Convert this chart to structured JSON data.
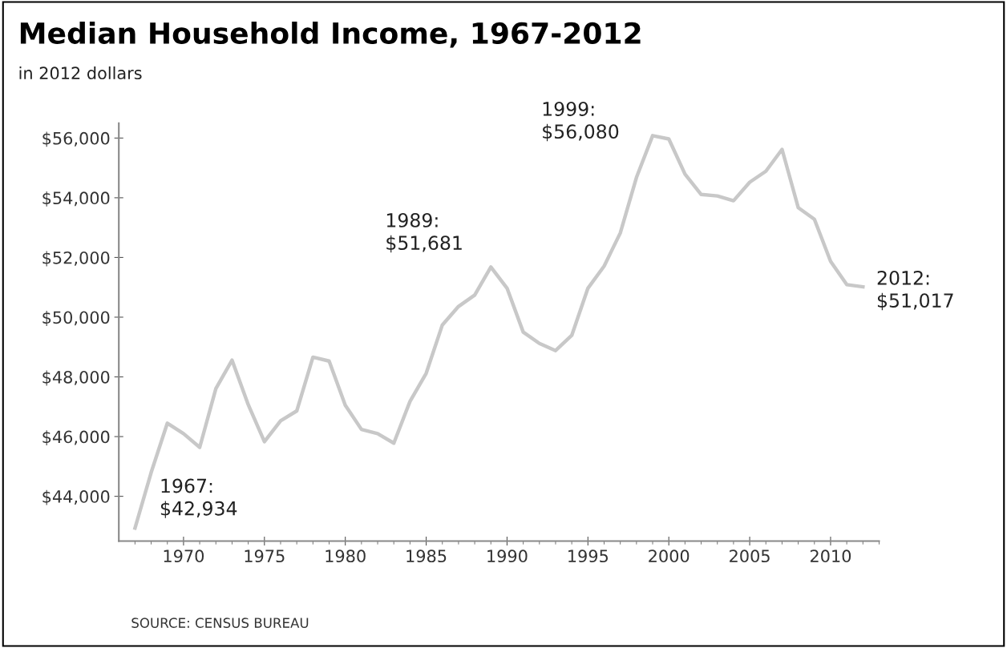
{
  "chart_data": {
    "type": "line",
    "title": "Median Household Income, 1967-2012",
    "subtitle": "in 2012 dollars",
    "x": [
      1967,
      1968,
      1969,
      1970,
      1971,
      1972,
      1973,
      1974,
      1975,
      1976,
      1977,
      1978,
      1979,
      1980,
      1981,
      1982,
      1983,
      1984,
      1985,
      1986,
      1987,
      1988,
      1989,
      1990,
      1991,
      1992,
      1993,
      1994,
      1995,
      1996,
      1997,
      1998,
      1999,
      2000,
      2001,
      2002,
      2003,
      2004,
      2005,
      2006,
      2007,
      2008,
      2009,
      2010,
      2011,
      2012
    ],
    "series": [
      {
        "color": "#c8c8c8",
        "values": [
          42934,
          44800,
          46450,
          46100,
          45640,
          47610,
          48560,
          47070,
          45830,
          46530,
          46860,
          48660,
          48530,
          47050,
          46240,
          46100,
          45780,
          47180,
          48120,
          49740,
          50360,
          50740,
          51681,
          50970,
          49500,
          49120,
          48880,
          49390,
          50970,
          51710,
          52820,
          54680,
          56080,
          55970,
          54790,
          54110,
          54060,
          53900,
          54520,
          54890,
          55620,
          53670,
          53280,
          51870,
          51090,
          51017
        ]
      }
    ],
    "xlim": [
      1966,
      2013
    ],
    "xticks": [
      1970,
      1975,
      1980,
      1985,
      1990,
      1995,
      2000,
      2005,
      2010
    ],
    "ylim": [
      42500,
      56500
    ],
    "yticks": [
      {
        "value": 44000,
        "label": "$44,000"
      },
      {
        "value": 46000,
        "label": "$46,000"
      },
      {
        "value": 48000,
        "label": "$48,000"
      },
      {
        "value": 50000,
        "label": "$50,000"
      },
      {
        "value": 52000,
        "label": "$52,000"
      },
      {
        "value": 54000,
        "label": "$54,000"
      },
      {
        "value": 56000,
        "label": "$56,000"
      }
    ],
    "grid": false,
    "legend": false,
    "marker": "none",
    "line_style": "solid",
    "annotations": [
      {
        "text": "1967:\n$42,934",
        "x": 1967,
        "y": 42934
      },
      {
        "text": "1989:\n$51,681",
        "x": 1989,
        "y": 51681
      },
      {
        "text": "1999:\n$56,080",
        "x": 1999,
        "y": 56080
      },
      {
        "text": "2012:\n$51,017",
        "x": 2012,
        "y": 51017
      },
      "SOURCE: CENSUS BUREAU"
    ]
  }
}
